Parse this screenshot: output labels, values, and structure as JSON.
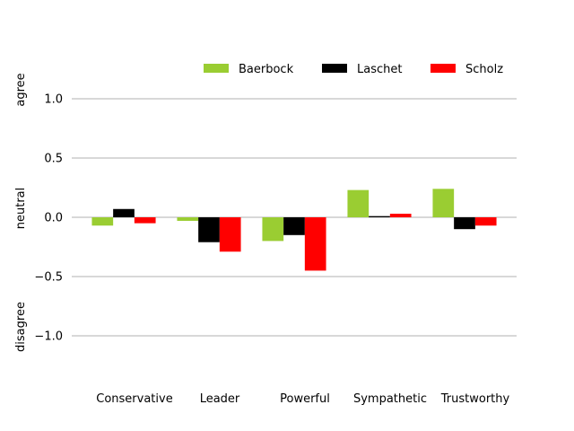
{
  "chart_data": {
    "type": "bar",
    "categories": [
      "Conservative",
      "Leader",
      "Powerful",
      "Sympathetic",
      "Trustworthy"
    ],
    "series": [
      {
        "name": "Baerbock",
        "color": "#9acd32",
        "values": [
          -0.07,
          -0.03,
          -0.2,
          0.23,
          0.24
        ]
      },
      {
        "name": "Laschet",
        "color": "#000000",
        "values": [
          0.07,
          -0.21,
          -0.15,
          0.01,
          -0.1
        ]
      },
      {
        "name": "Scholz",
        "color": "#ff0000",
        "values": [
          -0.05,
          -0.29,
          -0.45,
          0.03,
          -0.07
        ]
      }
    ],
    "ylim": [
      -1.4,
      1.2
    ],
    "yticks": [
      1.0,
      0.5,
      0.0,
      -0.5,
      -1.0
    ],
    "ytick_labels": [
      "1.0",
      "0.5",
      "0.0",
      "−0.5",
      "−1.0"
    ],
    "ylabels": [
      {
        "text": "agree",
        "value": 1.0
      },
      {
        "text": "neutral",
        "value": 0.0
      },
      {
        "text": "disagree",
        "value": -1.0
      }
    ],
    "grid": true,
    "legend_position": "top-right",
    "gridline_color": "#b0b0b0"
  }
}
